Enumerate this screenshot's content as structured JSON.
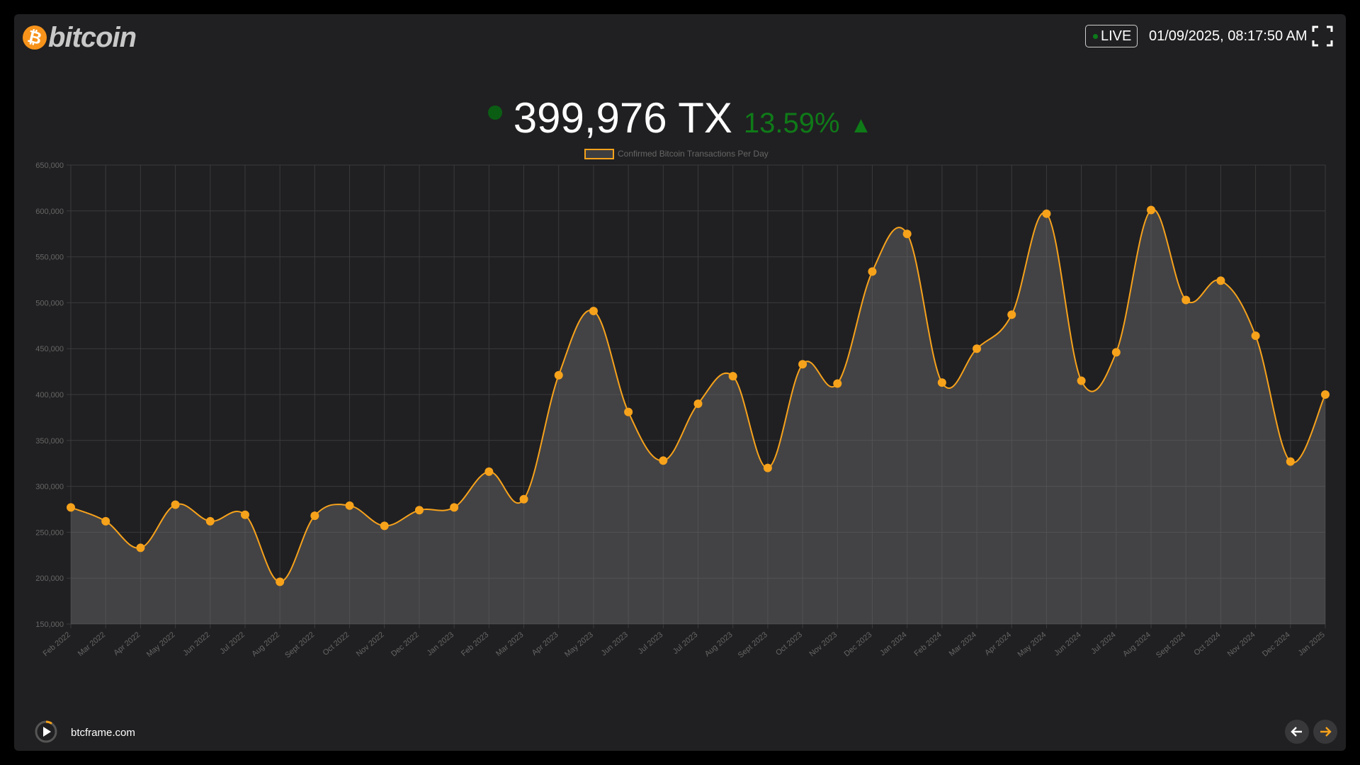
{
  "header": {
    "logo_text": "bitcoin",
    "logo_symbol": "₿",
    "live_label": "LIVE",
    "datetime": "01/09/2025, 08:17:50 AM",
    "fullscreen_icon": "fullscreen-icon"
  },
  "headline": {
    "value": "399,976 TX",
    "change": "13.59%",
    "arrow": "▲",
    "status_color": "#0b5d14",
    "change_color": "#0f7a18"
  },
  "footer": {
    "site": "btcframe.com",
    "play_icon": "play-icon",
    "prev_icon": "arrow-left-icon",
    "next_icon": "arrow-right-icon"
  },
  "colors": {
    "accent": "#f7a21b",
    "background": "#202022",
    "grid": "#3a3a3c"
  },
  "chart_data": {
    "type": "area",
    "legend": "Confirmed Bitcoin Transactions Per Day",
    "legend_position": "top-center",
    "ylim": [
      150000,
      650000
    ],
    "yticks": [
      "650,000",
      "600,000",
      "550,000",
      "500,000",
      "450,000",
      "400,000",
      "350,000",
      "300,000",
      "250,000",
      "200,000",
      "150,000"
    ],
    "grid": true,
    "categories": [
      "Feb 2022",
      "Mar 2022",
      "Apr 2022",
      "May 2022",
      "Jun 2022",
      "Jul 2022",
      "Aug 2022",
      "Sept 2022",
      "Oct 2022",
      "Nov 2022",
      "Dec 2022",
      "Jan 2023",
      "Feb 2023",
      "Mar 2023",
      "Apr 2023",
      "May 2023",
      "Jun 2023",
      "Jul 2023",
      "Jul 2023",
      "Aug 2023",
      "Sept 2023",
      "Oct 2023",
      "Nov 2023",
      "Dec 2023",
      "Jan 2024",
      "Feb 2024",
      "Mar 2024",
      "Apr 2024",
      "May 2024",
      "Jun 2024",
      "Jul 2024",
      "Aug 2024",
      "Sept 2024",
      "Oct 2024",
      "Nov 2024",
      "Dec 2024",
      "Jan 2025"
    ],
    "series": [
      {
        "name": "Confirmed Bitcoin Transactions Per Day",
        "values": [
          277000,
          262000,
          233000,
          280000,
          262000,
          269000,
          196000,
          268000,
          279000,
          257000,
          274000,
          277000,
          316000,
          286000,
          421000,
          491000,
          381000,
          328000,
          390000,
          420000,
          320000,
          433000,
          412000,
          534000,
          575000,
          413000,
          450000,
          487000,
          597000,
          415000,
          446000,
          601000,
          503000,
          524000,
          464000,
          327000,
          400000
        ]
      }
    ]
  }
}
